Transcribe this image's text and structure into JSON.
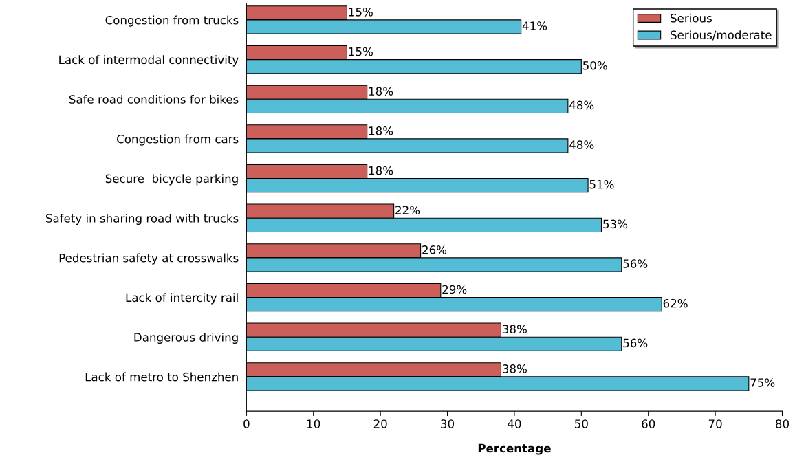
{
  "chart_data": {
    "type": "bar",
    "orientation": "horizontal",
    "xlabel": "Percentage",
    "categories": [
      "Congestion from trucks",
      "Lack of intermodal connectivity",
      "Safe road conditions for bikes",
      "Congestion from cars",
      "Secure  bicycle parking",
      "Safety in sharing road with trucks",
      "Pedestrian safety at crosswalks",
      "Lack of intercity rail",
      "Dangerous driving",
      "Lack of metro to Shenzhen"
    ],
    "series": [
      {
        "name": "Serious",
        "color": "#cd5f5a",
        "values": [
          15,
          15,
          18,
          18,
          18,
          22,
          26,
          29,
          38,
          38
        ],
        "value_labels": [
          "15%",
          "15%",
          "18%",
          "18%",
          "18%",
          "22%",
          "26%",
          "29%",
          "38%",
          "38%"
        ]
      },
      {
        "name": "Serious/moderate",
        "color": "#55bcd6",
        "values": [
          41,
          50,
          48,
          48,
          51,
          53,
          56,
          62,
          56,
          75
        ],
        "value_labels": [
          "41%",
          "50%",
          "48%",
          "48%",
          "51%",
          "53%",
          "56%",
          "62%",
          "56%",
          "75%"
        ]
      }
    ],
    "xlim": [
      0,
      80
    ],
    "xticks": [
      0,
      10,
      20,
      30,
      40,
      50,
      60,
      70,
      80
    ],
    "grid": false,
    "legend": "top right"
  }
}
